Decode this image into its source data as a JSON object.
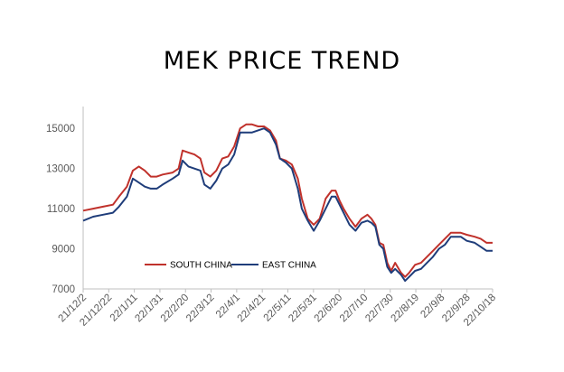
{
  "chart_data": {
    "type": "line",
    "title": "MEK  PRICE  TREND",
    "xlabel": "",
    "ylabel": "",
    "ylim": [
      7000,
      16000
    ],
    "y_ticks": [
      "15000",
      "13000",
      "11000",
      "9000",
      "7000"
    ],
    "x_tick_labels": [
      "21/12/2",
      "21/12/22",
      "22/1/11",
      "22/1/31",
      "22/2/20",
      "22/3/12",
      "22/4/1",
      "22/4/21",
      "22/5/11",
      "22/5/31",
      "22/6/20",
      "22/7/10",
      "22/7/30",
      "22/8/19",
      "22/9/8",
      "22/9/28",
      "22/10/18"
    ],
    "grid": false,
    "legend_position": "bottom-left inside plot",
    "series": [
      {
        "name": "SOUTH CHINA",
        "color": "#c0312b",
        "points": [
          [
            0,
            10900
          ],
          [
            5,
            11000
          ],
          [
            10,
            11100
          ],
          [
            15,
            11200
          ],
          [
            18,
            11600
          ],
          [
            22,
            12100
          ],
          [
            25,
            12900
          ],
          [
            28,
            13100
          ],
          [
            31,
            12900
          ],
          [
            34,
            12600
          ],
          [
            37,
            12600
          ],
          [
            40,
            12700
          ],
          [
            45,
            12800
          ],
          [
            48,
            13000
          ],
          [
            50,
            13900
          ],
          [
            53,
            13800
          ],
          [
            56,
            13700
          ],
          [
            59,
            13500
          ],
          [
            61,
            12800
          ],
          [
            64,
            12600
          ],
          [
            67,
            12900
          ],
          [
            70,
            13500
          ],
          [
            73,
            13600
          ],
          [
            76,
            14100
          ],
          [
            79,
            15000
          ],
          [
            82,
            15200
          ],
          [
            85,
            15200
          ],
          [
            88,
            15100
          ],
          [
            91,
            15100
          ],
          [
            94,
            14900
          ],
          [
            97,
            14400
          ],
          [
            99,
            13500
          ],
          [
            102,
            13400
          ],
          [
            105,
            13200
          ],
          [
            108,
            12500
          ],
          [
            110,
            11500
          ],
          [
            113,
            10500
          ],
          [
            116,
            10200
          ],
          [
            119,
            10500
          ],
          [
            122,
            11500
          ],
          [
            125,
            11900
          ],
          [
            127,
            11900
          ],
          [
            129,
            11400
          ],
          [
            131,
            11000
          ],
          [
            134,
            10500
          ],
          [
            137,
            10100
          ],
          [
            140,
            10500
          ],
          [
            143,
            10700
          ],
          [
            145,
            10500
          ],
          [
            147,
            10200
          ],
          [
            149,
            9300
          ],
          [
            151,
            9200
          ],
          [
            153,
            8300
          ],
          [
            155,
            7900
          ],
          [
            157,
            8300
          ],
          [
            160,
            7800
          ],
          [
            162,
            7600
          ],
          [
            164,
            7800
          ],
          [
            167,
            8200
          ],
          [
            170,
            8300
          ],
          [
            173,
            8600
          ],
          [
            176,
            8900
          ],
          [
            179,
            9200
          ],
          [
            182,
            9500
          ],
          [
            185,
            9800
          ],
          [
            190,
            9800
          ],
          [
            193,
            9700
          ],
          [
            197,
            9600
          ],
          [
            200,
            9500
          ],
          [
            203,
            9300
          ],
          [
            206,
            9300
          ]
        ]
      },
      {
        "name": "EAST CHINA",
        "color": "#1f3d7a",
        "points": [
          [
            0,
            10400
          ],
          [
            5,
            10600
          ],
          [
            10,
            10700
          ],
          [
            15,
            10800
          ],
          [
            18,
            11100
          ],
          [
            22,
            11600
          ],
          [
            25,
            12500
          ],
          [
            28,
            12300
          ],
          [
            31,
            12100
          ],
          [
            34,
            12000
          ],
          [
            37,
            12000
          ],
          [
            40,
            12200
          ],
          [
            45,
            12500
          ],
          [
            48,
            12700
          ],
          [
            50,
            13400
          ],
          [
            53,
            13100
          ],
          [
            56,
            13000
          ],
          [
            59,
            12900
          ],
          [
            61,
            12200
          ],
          [
            64,
            12000
          ],
          [
            67,
            12400
          ],
          [
            70,
            13000
          ],
          [
            73,
            13200
          ],
          [
            76,
            13700
          ],
          [
            79,
            14800
          ],
          [
            82,
            14800
          ],
          [
            85,
            14800
          ],
          [
            88,
            14900
          ],
          [
            91,
            15000
          ],
          [
            94,
            14800
          ],
          [
            97,
            14200
          ],
          [
            99,
            13500
          ],
          [
            102,
            13300
          ],
          [
            105,
            13000
          ],
          [
            108,
            12000
          ],
          [
            110,
            11000
          ],
          [
            113,
            10400
          ],
          [
            116,
            9900
          ],
          [
            119,
            10400
          ],
          [
            122,
            11000
          ],
          [
            125,
            11600
          ],
          [
            127,
            11600
          ],
          [
            129,
            11200
          ],
          [
            131,
            10800
          ],
          [
            134,
            10200
          ],
          [
            137,
            9900
          ],
          [
            140,
            10300
          ],
          [
            143,
            10400
          ],
          [
            145,
            10300
          ],
          [
            147,
            10100
          ],
          [
            149,
            9200
          ],
          [
            151,
            9000
          ],
          [
            153,
            8100
          ],
          [
            155,
            7800
          ],
          [
            157,
            8000
          ],
          [
            160,
            7700
          ],
          [
            162,
            7400
          ],
          [
            164,
            7600
          ],
          [
            167,
            7900
          ],
          [
            170,
            8000
          ],
          [
            173,
            8300
          ],
          [
            176,
            8600
          ],
          [
            179,
            9000
          ],
          [
            182,
            9200
          ],
          [
            185,
            9600
          ],
          [
            190,
            9600
          ],
          [
            193,
            9400
          ],
          [
            197,
            9300
          ],
          [
            200,
            9100
          ],
          [
            203,
            8900
          ],
          [
            206,
            8900
          ]
        ]
      }
    ]
  }
}
